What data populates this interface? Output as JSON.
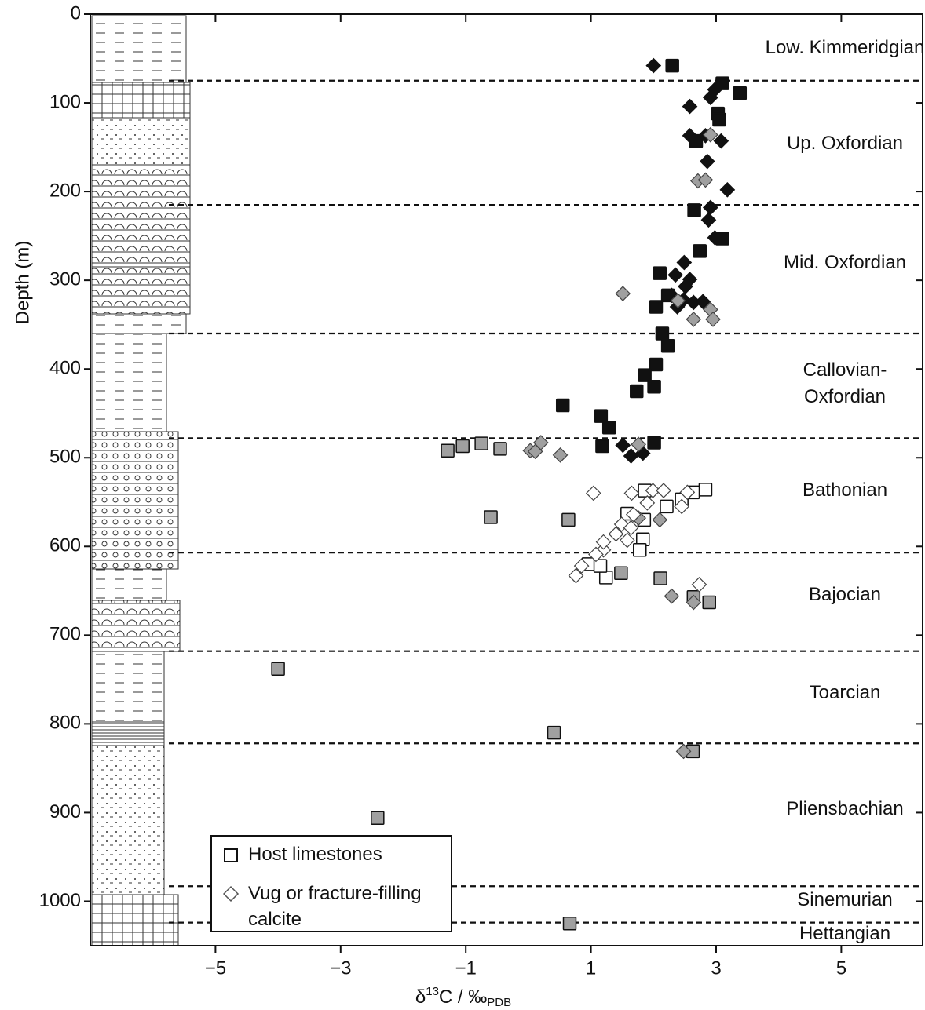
{
  "chart_data": {
    "type": "scatter",
    "ylabel": "Depth (m)",
    "xlabel": {
      "delta": "δ",
      "sup": "13",
      "main": "C / ‰",
      "sub": "PDB"
    },
    "xlim": [
      -7,
      6.3
    ],
    "ylim": [
      0,
      1050
    ],
    "y_inverted": true,
    "xticks": [
      {
        "value": -5,
        "label": "−5"
      },
      {
        "value": -3,
        "label": "−3"
      },
      {
        "value": -1,
        "label": "−1"
      },
      1,
      3,
      5
    ],
    "yticks": [
      0,
      100,
      200,
      300,
      400,
      500,
      600,
      700,
      800,
      900,
      1000
    ],
    "boundaries": [
      75,
      215,
      360,
      478,
      607,
      718,
      822,
      983,
      1024
    ],
    "stages": [
      "Low. Kimmeridgian",
      "Up. Oxfordian",
      "Mid. Oxfordian",
      "Callovian-Oxfordian",
      "Bathonian",
      "Bajocian",
      "Toarcian",
      "Pliensbachian",
      "Sinemurian",
      "Hettangian"
    ],
    "legend_position": "lower left",
    "series": [
      {
        "name": "Host limestones",
        "marker": "square",
        "x": [
          2.3,
          3.1,
          3.38,
          3.03,
          3.05,
          2.68,
          2.65,
          3.1,
          2.74,
          2.1,
          2.23,
          2.04,
          2.14,
          2.23,
          2.04,
          1.86,
          2.01,
          1.73,
          0.55,
          1.16,
          1.29,
          1.18,
          2.01,
          -1.29,
          -1.05,
          -0.75,
          -0.45,
          -0.6,
          0.64,
          1.48,
          2.11,
          2.64,
          2.89,
          -4.0,
          0.41,
          2.63,
          -2.41,
          0.66,
          2.83,
          2.63,
          2.45,
          1.86,
          2.21,
          1.58,
          1.85,
          1.83,
          1.78,
          0.96,
          1.24,
          1.15
        ],
        "values": [
          58,
          78,
          89,
          112,
          119,
          143,
          221,
          253,
          267,
          292,
          317,
          330,
          360,
          374,
          395,
          407,
          420,
          425,
          441,
          453,
          466,
          487,
          483,
          492,
          487,
          484,
          490,
          567,
          570,
          630,
          636,
          657,
          663,
          738,
          810,
          831,
          906,
          1025,
          536,
          539,
          547,
          537,
          555,
          563,
          570,
          592,
          604,
          620,
          635,
          622
        ],
        "colors": [
          "#111111",
          "#111111",
          "#111111",
          "#111111",
          "#111111",
          "#111111",
          "#111111",
          "#111111",
          "#111111",
          "#111111",
          "#111111",
          "#111111",
          "#111111",
          "#111111",
          "#111111",
          "#111111",
          "#111111",
          "#111111",
          "#111111",
          "#111111",
          "#111111",
          "#111111",
          "#111111",
          "#a0a0a0",
          "#a0a0a0",
          "#a0a0a0",
          "#a0a0a0",
          "#a0a0a0",
          "#a0a0a0",
          "#a0a0a0",
          "#a0a0a0",
          "#a0a0a0",
          "#a0a0a0",
          "#a0a0a0",
          "#a0a0a0",
          "#a0a0a0",
          "#a0a0a0",
          "#a0a0a0",
          "#ffffff",
          "#ffffff",
          "#ffffff",
          "#ffffff",
          "#ffffff",
          "#ffffff",
          "#ffffff",
          "#ffffff",
          "#ffffff",
          "#ffffff",
          "#ffffff",
          "#ffffff"
        ]
      },
      {
        "name": "Vug or fracture-filling calcite",
        "marker": "diamond",
        "x": [
          2.0,
          2.58,
          2.91,
          2.98,
          2.58,
          2.83,
          3.08,
          2.86,
          3.18,
          2.91,
          2.88,
          2.98,
          2.49,
          2.35,
          2.58,
          2.51,
          2.29,
          2.48,
          2.64,
          2.79,
          2.38,
          1.51,
          1.64,
          1.83,
          1.51,
          2.39,
          2.91,
          2.64,
          2.95,
          2.71,
          2.83,
          2.91,
          0.2,
          0.03,
          0.11,
          0.51,
          1.76,
          1.76,
          2.1,
          2.29,
          2.64,
          2.48,
          1.04,
          1.65,
          1.99,
          2.16,
          2.54,
          2.45,
          1.9,
          1.68,
          1.49,
          1.64,
          1.4,
          1.58,
          1.2,
          1.08,
          0.85,
          1.2,
          0.76,
          2.73
        ],
        "values": [
          58,
          104,
          94,
          85,
          137,
          137,
          143,
          166,
          198,
          218,
          232,
          252,
          280,
          294,
          299,
          307,
          317,
          322,
          325,
          324,
          330,
          486,
          498,
          495,
          315,
          323,
          333,
          344,
          344,
          188,
          187,
          136,
          483,
          492,
          493,
          497,
          485,
          568,
          570,
          656,
          663,
          831,
          540,
          540,
          537,
          537,
          539,
          555,
          551,
          564,
          575,
          579,
          586,
          593,
          604,
          609,
          622,
          595,
          633,
          643
        ],
        "colors": [
          "#111111",
          "#111111",
          "#111111",
          "#111111",
          "#111111",
          "#111111",
          "#111111",
          "#111111",
          "#111111",
          "#111111",
          "#111111",
          "#111111",
          "#111111",
          "#111111",
          "#111111",
          "#111111",
          "#111111",
          "#111111",
          "#111111",
          "#111111",
          "#111111",
          "#111111",
          "#111111",
          "#111111",
          "#a0a0a0",
          "#a0a0a0",
          "#a0a0a0",
          "#a0a0a0",
          "#a0a0a0",
          "#a0a0a0",
          "#a0a0a0",
          "#a0a0a0",
          "#a0a0a0",
          "#a0a0a0",
          "#a0a0a0",
          "#a0a0a0",
          "#a0a0a0",
          "#a0a0a0",
          "#a0a0a0",
          "#a0a0a0",
          "#a0a0a0",
          "#a0a0a0",
          "#ffffff",
          "#ffffff",
          "#ffffff",
          "#ffffff",
          "#ffffff",
          "#ffffff",
          "#ffffff",
          "#ffffff",
          "#ffffff",
          "#ffffff",
          "#ffffff",
          "#ffffff",
          "#ffffff",
          "#ffffff",
          "#ffffff",
          "#ffffff",
          "#ffffff",
          "#ffffff"
        ]
      }
    ]
  }
}
